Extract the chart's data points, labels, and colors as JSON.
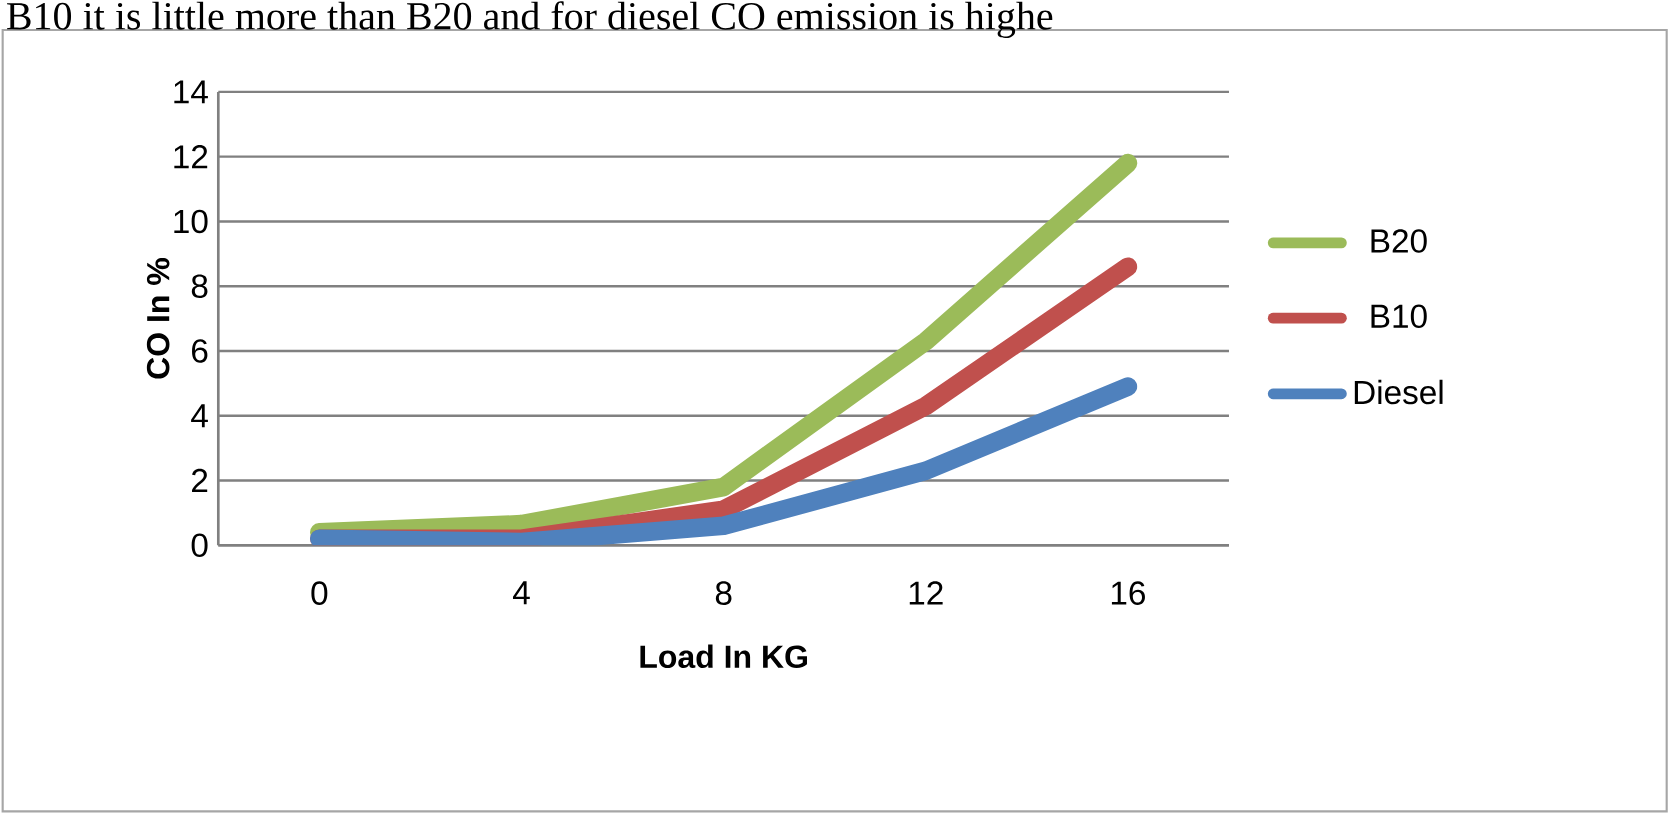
{
  "chart_data": {
    "type": "line",
    "annotations": [
      "B10 it is little more than B20 and for diesel CO emission is highe"
    ],
    "xlabel": "Load In KG",
    "ylabel": "CO In %",
    "categories": [
      "0",
      "4",
      "8",
      "12",
      "16"
    ],
    "ylim": [
      0,
      14
    ],
    "yticks": [
      0,
      2,
      4,
      6,
      8,
      10,
      12,
      14
    ],
    "grid": "y",
    "legend": "right",
    "marker": "none",
    "line_style": "solid",
    "series": [
      {
        "name": "B20",
        "color": "#9bbb59",
        "values": [
          0.4,
          0.65,
          1.8,
          6.3,
          11.8
        ]
      },
      {
        "name": "B10",
        "color": "#c0504d",
        "values": [
          0.2,
          0.2,
          1.1,
          4.3,
          8.6
        ]
      },
      {
        "name": "Diesel",
        "color": "#4f81bd",
        "values": [
          0.2,
          0.1,
          0.6,
          2.3,
          4.9
        ]
      }
    ]
  }
}
